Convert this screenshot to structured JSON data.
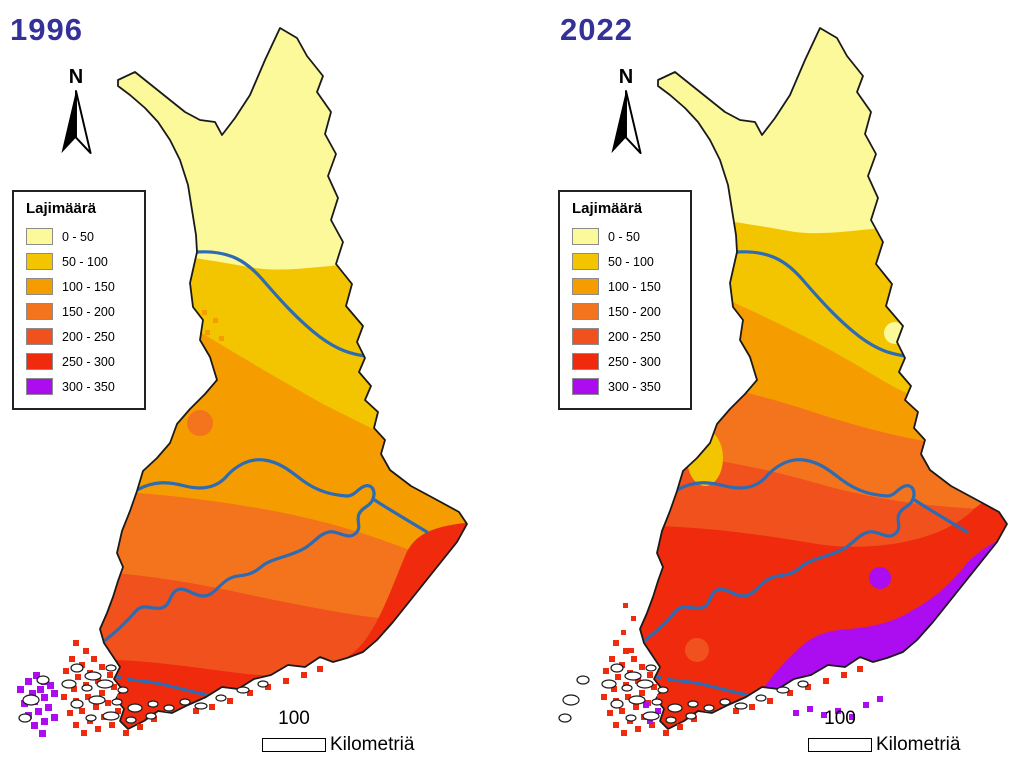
{
  "panels": [
    {
      "year": "1996",
      "north_label": "N",
      "legend": {
        "title": "Lajimäärä",
        "classes": [
          {
            "label": "0 - 50",
            "color": "#FBF99A"
          },
          {
            "label": "50 - 100",
            "color": "#F2C500"
          },
          {
            "label": "100 - 150",
            "color": "#F59D00"
          },
          {
            "label": "150 - 200",
            "color": "#F4741D"
          },
          {
            "label": "200 - 250",
            "color": "#F1511D"
          },
          {
            "label": "250 - 300",
            "color": "#EF2A0D"
          },
          {
            "label": "300 - 350",
            "color": "#AC0CF0"
          }
        ]
      },
      "scale_bar": {
        "distance": "100",
        "unit": "Kilometriä"
      }
    },
    {
      "year": "2022",
      "north_label": "N",
      "legend": {
        "title": "Lajimäärä",
        "classes": [
          {
            "label": "0 - 50",
            "color": "#FBF99A"
          },
          {
            "label": "50 - 100",
            "color": "#F2C500"
          },
          {
            "label": "100 - 150",
            "color": "#F59D00"
          },
          {
            "label": "150 - 200",
            "color": "#F4741D"
          },
          {
            "label": "200 - 250",
            "color": "#F1511D"
          },
          {
            "label": "250 - 300",
            "color": "#EF2A0D"
          },
          {
            "label": "300 - 350",
            "color": "#AC0CF0"
          }
        ]
      },
      "scale_bar": {
        "distance": "100",
        "unit": "Kilometriä"
      }
    }
  ],
  "styles": {
    "title_color": "#343199",
    "boundary_line_color": "#2D6BB2",
    "coastline_color": "#1A1A1A",
    "background": "#FFFFFF"
  }
}
